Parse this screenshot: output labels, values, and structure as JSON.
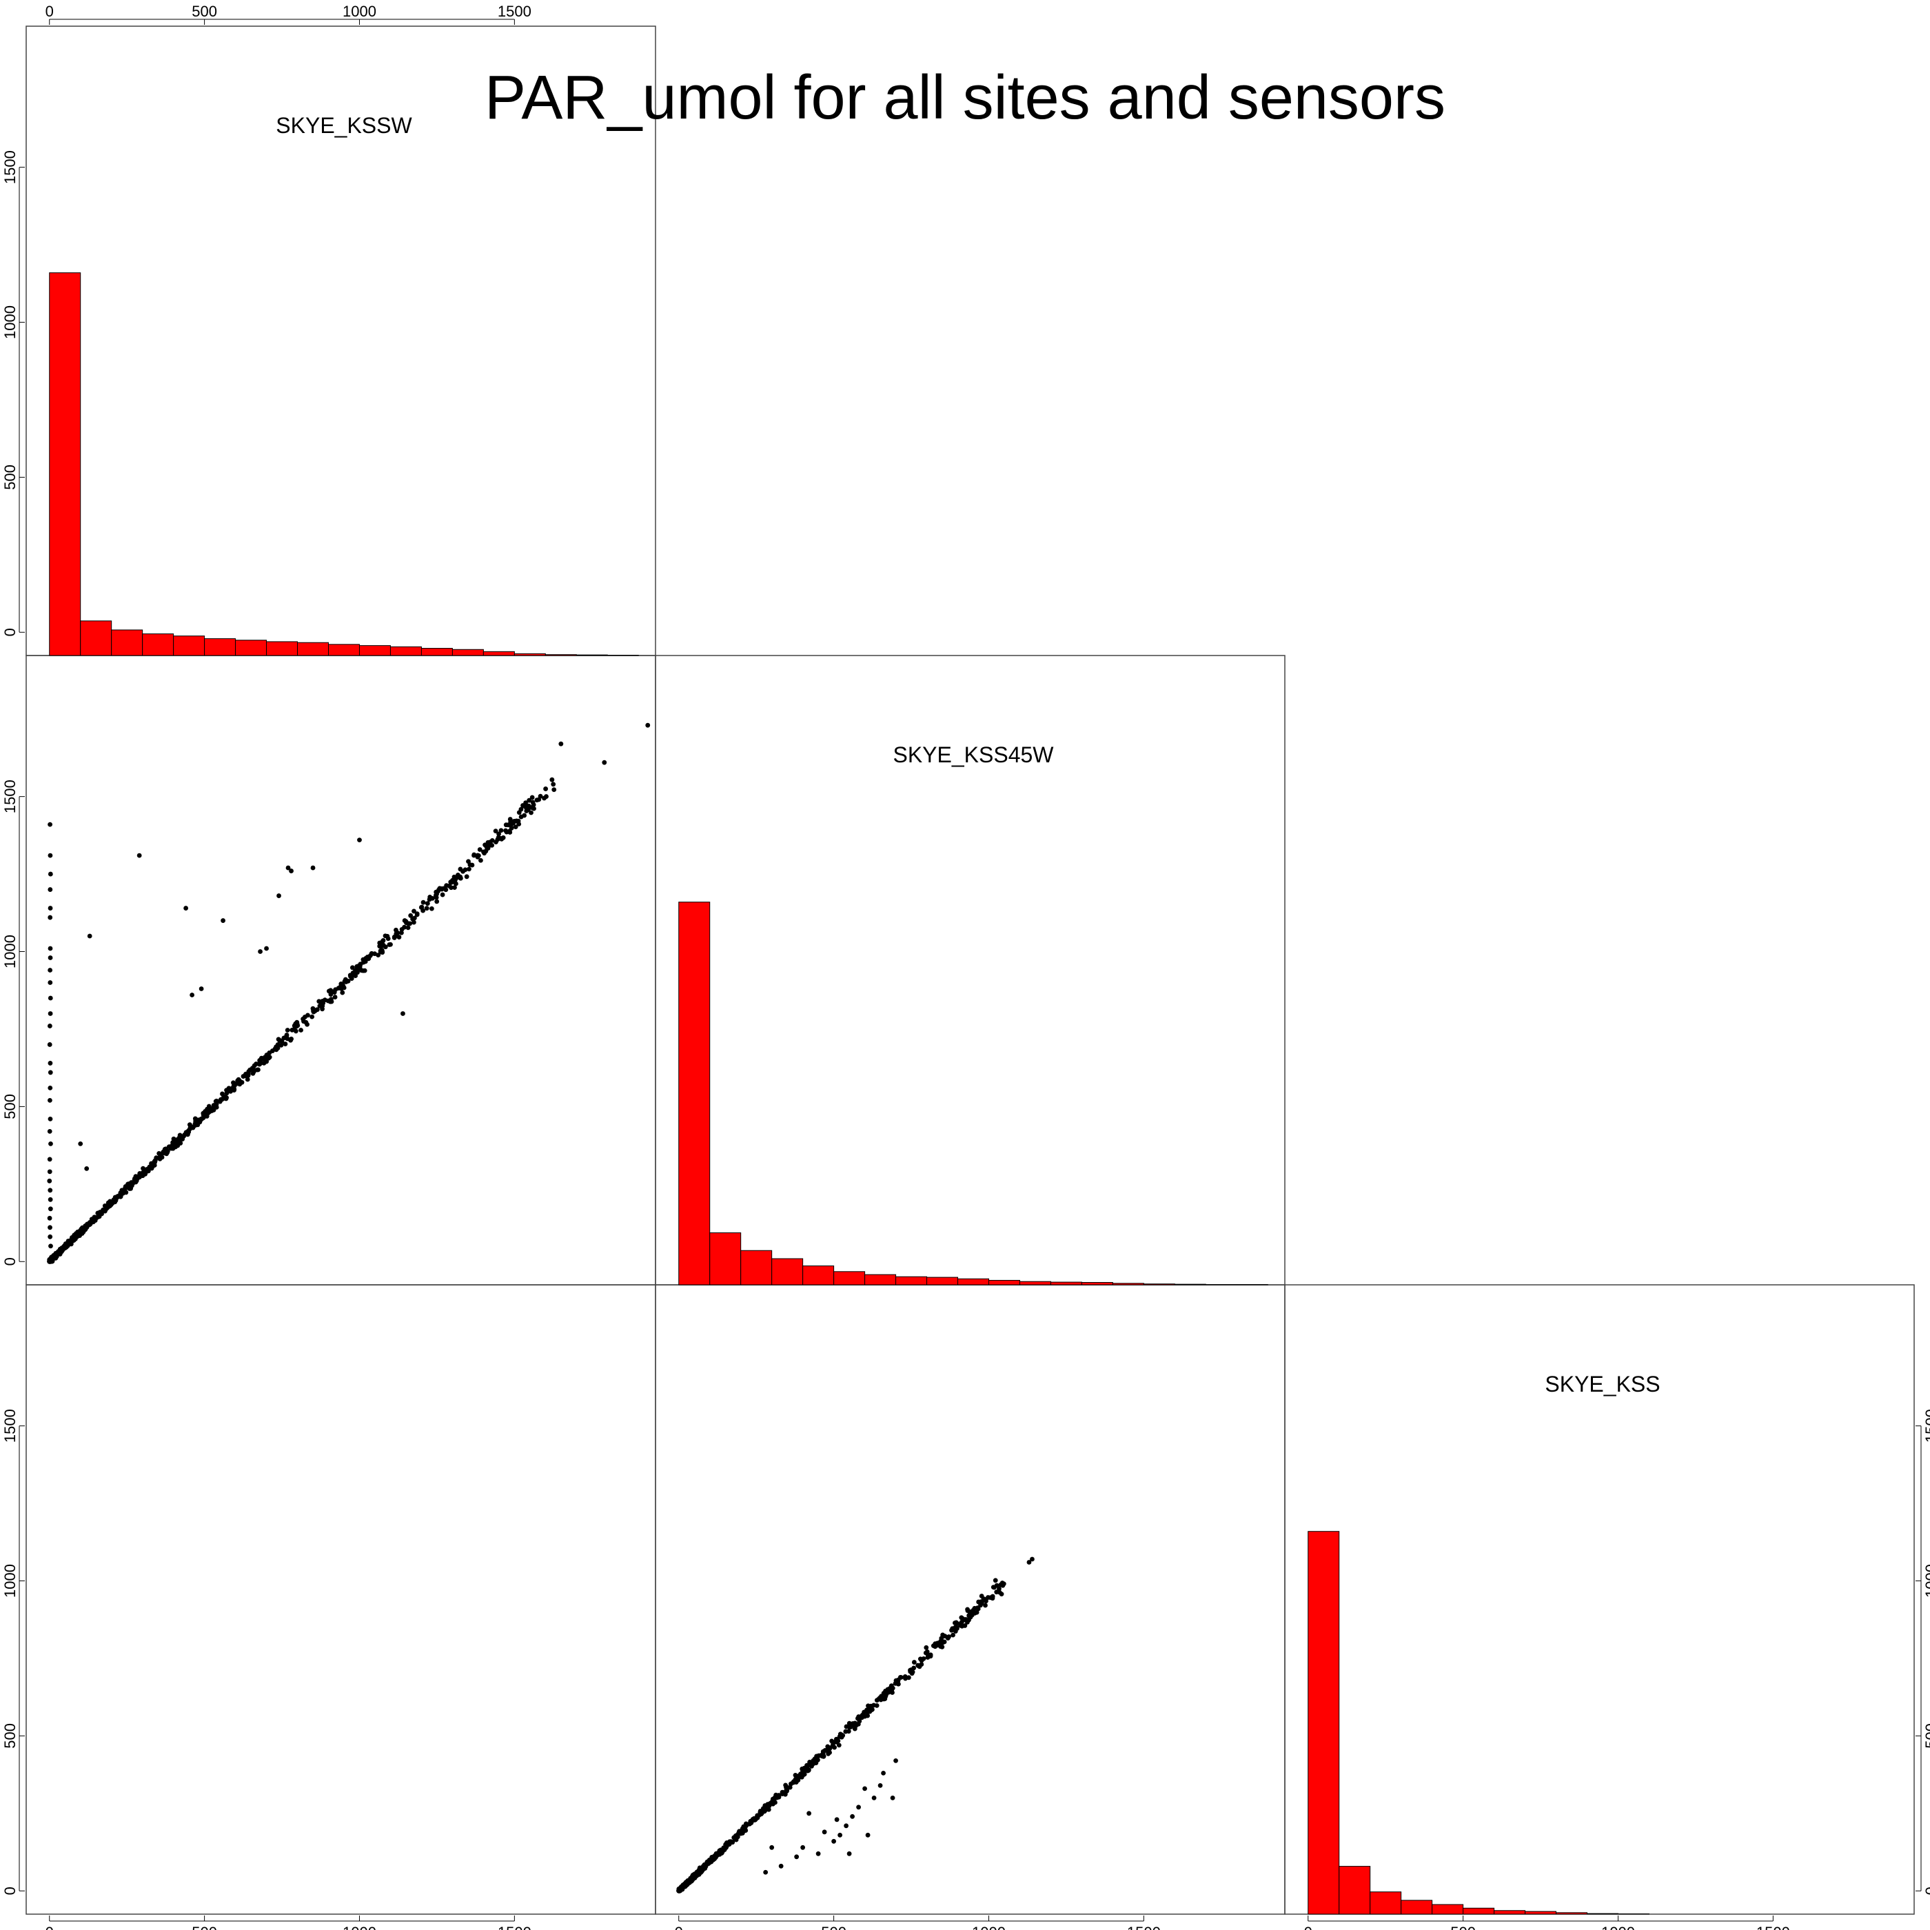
{
  "chart_data": {
    "type": "scatter",
    "title": "PAR_umol for all sites and sensors",
    "variables": [
      "SKYE_KSSW",
      "SKYE_KSS45W",
      "SKYE_KSS"
    ],
    "axis_range": [
      -75,
      1955
    ],
    "ticks": [
      0,
      500,
      1000,
      1500
    ],
    "tick_labels": [
      "0",
      "500",
      "1000",
      "1500"
    ],
    "bar_color": "#ff0000",
    "point_color": "#000000",
    "histograms": [
      {
        "variable": "SKYE_KSSW",
        "bin_width": 100,
        "bin_starts": [
          0,
          100,
          200,
          300,
          400,
          500,
          600,
          700,
          800,
          900,
          1000,
          1100,
          1200,
          1300,
          1400,
          1500,
          1600,
          1700,
          1800
        ],
        "heights": [
          1272,
          115,
          85,
          72,
          65,
          56,
          51,
          46,
          43,
          37,
          33,
          29,
          24,
          20,
          13,
          6,
          3,
          2,
          1
        ]
      },
      {
        "variable": "SKYE_KSS45W",
        "bin_width": 100,
        "bin_starts": [
          0,
          100,
          200,
          300,
          400,
          500,
          600,
          700,
          800,
          900,
          1000,
          1100,
          1200,
          1300,
          1400,
          1500,
          1600,
          1700,
          1800
        ],
        "heights": [
          1272,
          173,
          114,
          87,
          63,
          44,
          34,
          27,
          25,
          20,
          15,
          11,
          9,
          8,
          5,
          3,
          2,
          1,
          1
        ]
      },
      {
        "variable": "SKYE_KSS",
        "bin_width": 100,
        "bin_starts": [
          0,
          100,
          200,
          300,
          400,
          500,
          600,
          700,
          800,
          900,
          1000
        ],
        "heights": [
          1272,
          159,
          74,
          46,
          32,
          20,
          12,
          9,
          5,
          2,
          1
        ]
      }
    ],
    "scatter": [
      {
        "x_variable": "SKYE_KSSW",
        "y_variable": "SKYE_KSS45W",
        "trend": {
          "x_max": 1640,
          "slope": 0.945,
          "spread": 30,
          "n": 900
        },
        "vertical_cluster": {
          "x": 0,
          "y_values": [
            50,
            80,
            110,
            140,
            170,
            200,
            230,
            260,
            290,
            330,
            380,
            420,
            460,
            520,
            560,
            610,
            640,
            700,
            760,
            800,
            850,
            900,
            940,
            980,
            1010,
            1110,
            1140,
            1200,
            1250,
            1310,
            1410
          ]
        },
        "outliers": [
          [
            290,
            1310
          ],
          [
            130,
            1050
          ],
          [
            440,
            1140
          ],
          [
            560,
            1100
          ],
          [
            490,
            880
          ],
          [
            460,
            860
          ],
          [
            680,
            1000
          ],
          [
            700,
            1010
          ],
          [
            770,
            1270
          ],
          [
            780,
            1260
          ],
          [
            740,
            1180
          ],
          [
            850,
            1270
          ],
          [
            1000,
            1360
          ],
          [
            1650,
            1670
          ],
          [
            1790,
            1610
          ],
          [
            1930,
            1730
          ],
          [
            1140,
            800
          ],
          [
            100,
            380
          ],
          [
            120,
            300
          ]
        ]
      },
      {
        "x_variable": "SKYE_KSS45W",
        "y_variable": "SKYE_KSS",
        "trend": {
          "x_max": 1050,
          "slope": 0.95,
          "spread": 25,
          "n": 700
        },
        "outliers": [
          [
            1130,
            1060
          ],
          [
            1140,
            1070
          ],
          [
            690,
            300
          ],
          [
            660,
            380
          ],
          [
            520,
            180
          ],
          [
            540,
            210
          ],
          [
            580,
            270
          ],
          [
            650,
            340
          ],
          [
            330,
            80
          ],
          [
            450,
            120
          ],
          [
            500,
            160
          ],
          [
            560,
            240
          ],
          [
            610,
            180
          ],
          [
            510,
            230
          ],
          [
            470,
            190
          ],
          [
            400,
            140
          ],
          [
            380,
            110
          ],
          [
            280,
            60
          ],
          [
            300,
            140
          ],
          [
            420,
            250
          ],
          [
            630,
            300
          ],
          [
            550,
            120
          ],
          [
            600,
            330
          ],
          [
            700,
            420
          ]
        ]
      }
    ]
  }
}
